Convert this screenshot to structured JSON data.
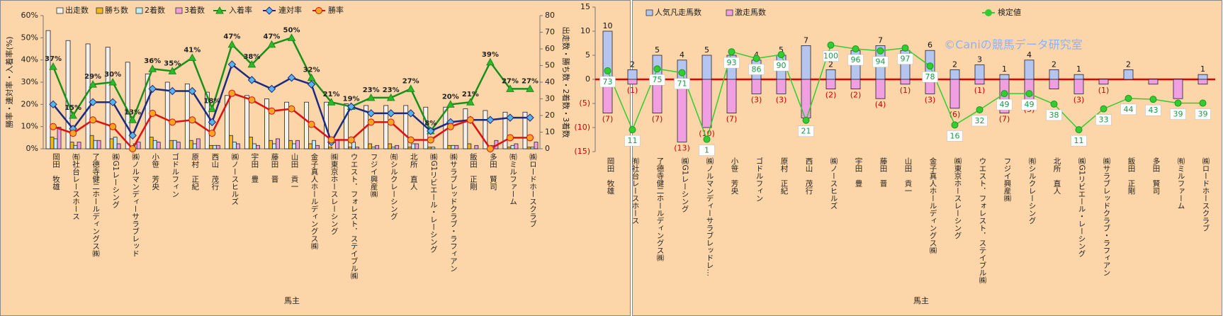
{
  "chart_data": [
    {
      "type": "combo",
      "x_label": "馬主",
      "y_label": "勝率・連対率・入着率(%)",
      "y2_label": "出走数・勝ち数・2着数・3着数",
      "categories": [
        "岡田　牧雄",
        "㈲社台レースホース",
        "了德寺健二ホールディングス㈱",
        "㈱G1レーシング",
        "㈱ノルマンディーサラブレッド",
        "小笹　芳央",
        "ゴドルフィン",
        "原村　正紀",
        "西山　茂行",
        "㈱ノースヒルズ",
        "宇田　豊",
        "藤田　晋",
        "山田　貢一",
        "金子真人ホールディングス㈱",
        "㈱東京ホースレーシング",
        "ウエスト．フォレスト．ステイブル㈱",
        "フジイ興産㈱",
        "㈲シルクレーシング",
        "北所　直人",
        "㈱G1リビエール・レーシング",
        "㈱サラブレッドクラブ・ラフィアン",
        "飯田　正剛",
        "多田　賢司",
        "㈲ミルファーム",
        "㈱ロードホースクラブ"
      ],
      "ylim": [
        0,
        60
      ],
      "yticks": [
        {
          "value": 0,
          "label": "0%"
        },
        {
          "value": 10,
          "label": "10%"
        },
        {
          "value": 20,
          "label": "20%"
        },
        {
          "value": 30,
          "label": "30%"
        },
        {
          "value": 40,
          "label": "40%"
        },
        {
          "value": 50,
          "label": "50%"
        },
        {
          "value": 60,
          "label": "60%"
        }
      ],
      "y2lim": [
        0,
        80
      ],
      "y2ticks": [
        0,
        10,
        20,
        30,
        40,
        50,
        60,
        70,
        80
      ],
      "series": [
        {
          "name": "出走数",
          "type": "bar",
          "axis": "y2",
          "color": "#f4f0ea",
          "values": [
            71,
            65,
            63,
            61,
            52,
            45,
            40,
            39,
            34,
            32,
            32,
            30,
            28,
            28,
            28,
            27,
            26,
            26,
            26,
            25,
            25,
            24,
            23,
            22,
            22
          ]
        },
        {
          "name": "勝ち数",
          "type": "bar",
          "axis": "y2",
          "color": "#f2b81e",
          "values": [
            7,
            4,
            8,
            6,
            0,
            7,
            5,
            5,
            2,
            8,
            7,
            5,
            5,
            3,
            1,
            1,
            3,
            3,
            1,
            1,
            2,
            3,
            0,
            1,
            1
          ]
        },
        {
          "name": "2着数",
          "type": "bar",
          "axis": "y2",
          "color": "#bfeef2",
          "values": [
            6,
            2,
            5,
            7,
            3,
            5,
            5,
            3,
            2,
            4,
            3,
            3,
            3,
            5,
            0,
            4,
            1,
            1,
            3,
            1,
            2,
            0,
            2,
            2,
            1
          ]
        },
        {
          "name": "3着数",
          "type": "bar",
          "axis": "y2",
          "color": "#f0a0d8",
          "values": [
            13,
            4,
            5,
            3,
            4,
            4,
            4,
            6,
            2,
            3,
            2,
            6,
            5,
            2,
            5,
            1,
            2,
            2,
            3,
            0,
            2,
            2,
            5,
            3,
            4
          ]
        },
        {
          "name": "入着率",
          "type": "line",
          "color": "#1a8f1a",
          "marker": "triangle",
          "marker_color": "#2db82d",
          "values": [
            37,
            15,
            29,
            30,
            13,
            36,
            35,
            41,
            18,
            47,
            38,
            47,
            50,
            32,
            21,
            19,
            23,
            23,
            27,
            8,
            20,
            21,
            39,
            27,
            27
          ],
          "value_labels": [
            "37%",
            "15%",
            "29%",
            "30%",
            "13%",
            "36%",
            "35%",
            "41%",
            "18%",
            "47%",
            "38%",
            "47%",
            "50%",
            "32%",
            "21%",
            "19%",
            "23%",
            "23%",
            "27%",
            "8%",
            "20%",
            "21%",
            "39%",
            "27%",
            "27%"
          ]
        },
        {
          "name": "連対率",
          "type": "line",
          "color": "#1c2a80",
          "marker": "diamond",
          "marker_color": "#5ab4e6",
          "values": [
            20,
            9,
            21,
            21,
            6,
            27,
            26,
            26,
            12,
            38,
            31,
            27,
            32,
            29,
            3,
            19,
            16,
            16,
            16,
            8,
            12,
            13,
            13,
            14,
            14
          ]
        },
        {
          "name": "勝率",
          "type": "line",
          "color": "#e01010",
          "marker": "circle",
          "marker_color": "#f5a623",
          "values": [
            10,
            7,
            13,
            10,
            0,
            16,
            12,
            13,
            7,
            25,
            22,
            17,
            18,
            11,
            4,
            4,
            12,
            12,
            4,
            4,
            10,
            13,
            0,
            5,
            5
          ]
        }
      ]
    },
    {
      "type": "combo",
      "x_label": "馬主",
      "annotation": "©Caniの競馬データ研究室",
      "categories": [
        "岡田　牧雄",
        "㈲社台レースホース",
        "了德寺健二ホールディングス㈱",
        "㈱G1レーシング",
        "㈱ノルマンディーサラブレッドレ…",
        "小笹　芳央",
        "ゴドルフィン",
        "原村　正紀",
        "西山　茂行",
        "㈱ノースヒルズ",
        "宇田　豊",
        "藤田　晋",
        "山田　貢一",
        "金子真人ホールディングス㈱",
        "㈱東京ホースレーシング",
        "ウエスト．フォレスト．ステイブル㈱",
        "フジイ興産㈱",
        "㈲シルクレーシング",
        "北所　直人",
        "㈱G1リビエール・レーシング",
        "㈱サラブレッドクラブ・ラフィアン",
        "飯田　正剛",
        "多田　賢司",
        "㈲ミルファーム",
        "㈱ロードホースクラブ"
      ],
      "ylim": [
        -15,
        15
      ],
      "yticks": [
        {
          "value": 15,
          "label": "15"
        },
        {
          "value": 10,
          "label": "10"
        },
        {
          "value": 5,
          "label": "5"
        },
        {
          "value": 0,
          "label": "0"
        },
        {
          "value": -5,
          "label": "(5)"
        },
        {
          "value": -10,
          "label": "(10)"
        },
        {
          "value": -15,
          "label": "(15)"
        }
      ],
      "y2lim": [
        -12,
        140
      ],
      "series": [
        {
          "name": "人気凡走馬数",
          "type": "bar",
          "color": "#b4c6f0",
          "values": [
            10,
            2,
            5,
            4,
            5,
            5,
            4,
            5,
            7,
            2,
            6,
            7,
            6,
            6,
            2,
            3,
            1,
            4,
            2,
            1,
            0,
            2,
            0,
            0,
            1
          ],
          "value_labels": [
            "10",
            "2",
            "5",
            "4",
            "5",
            null,
            "4",
            "5",
            "7",
            "2",
            null,
            "7",
            null,
            "6",
            "2",
            "3",
            "1",
            "4",
            "2",
            "1",
            null,
            "2",
            null,
            null,
            "1"
          ]
        },
        {
          "name": "激走馬数",
          "type": "bar",
          "color": "#f0a0e0",
          "values": [
            -7,
            -1,
            -7,
            -13,
            -10,
            -7,
            -3,
            -3,
            -8,
            -2,
            -2,
            -4,
            -1,
            -3,
            -6,
            -1,
            -7,
            -5,
            -2,
            -3,
            -1,
            0,
            -1,
            -4,
            -1
          ],
          "value_labels": [
            "(7)",
            "(1)",
            "(7)",
            "(13)",
            "(10)",
            "(7)",
            "(3)",
            "(3)",
            null,
            "(2)",
            "(2)",
            "(4)",
            "(1)",
            "(3)",
            "(6)",
            "(1)",
            "(7)",
            "(5)",
            null,
            "(3)",
            "(1)",
            null,
            null,
            null,
            null
          ]
        },
        {
          "name": "検定値",
          "type": "line",
          "axis": "y2",
          "color": "#33cc33",
          "marker": "circle",
          "marker_color": "#33cc33",
          "values": [
            73,
            11,
            75,
            71,
            1,
            93,
            86,
            90,
            21,
            100,
            96,
            94,
            97,
            78,
            16,
            32,
            49,
            49,
            38,
            11,
            33,
            44,
            43,
            39,
            39
          ]
        }
      ]
    }
  ]
}
